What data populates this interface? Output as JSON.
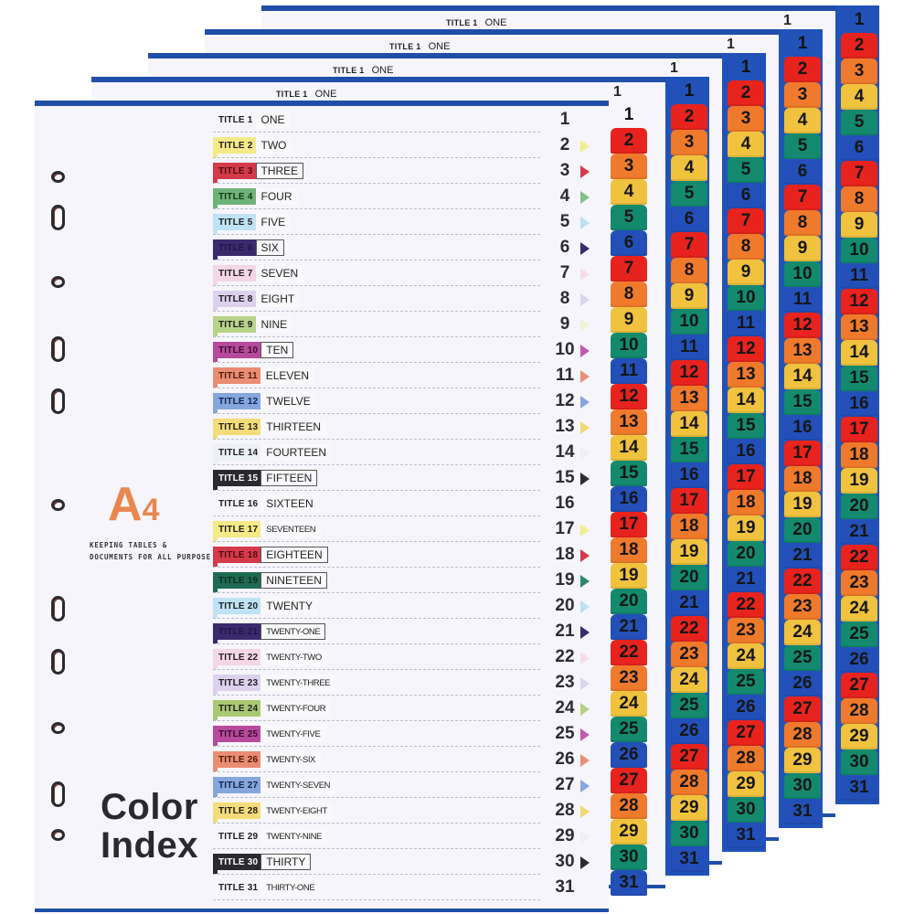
{
  "product": {
    "size_label": "A",
    "size_number": "4",
    "tagline_line1": "KEEPING TABLES &",
    "tagline_line2": "DOCUMENTS FOR ALL PURPOSE",
    "title_line1": "Color",
    "title_line2": "Index"
  },
  "colors": {
    "spine_blue": "#2152b8",
    "border_blue": "#1f4fa8",
    "paper": "#f6f5fb",
    "brand_orange": "#e8874f",
    "tab_cycle": [
      "#e8231e",
      "#f07a2c",
      "#f0c23e",
      "#138a6e",
      "#2350b8"
    ]
  },
  "back_sheets": [
    {
      "title_tag": "TITLE 1",
      "title_name": "ONE",
      "first_number": "1"
    },
    {
      "title_tag": "TITLE 1",
      "title_name": "ONE",
      "first_number": "1"
    },
    {
      "title_tag": "TITLE 1",
      "title_name": "ONE",
      "first_number": "1"
    },
    {
      "title_tag": "TITLE 1",
      "title_name": "ONE",
      "first_number": "1"
    }
  ],
  "tabs": [
    "1",
    "2",
    "3",
    "4",
    "5",
    "6",
    "7",
    "8",
    "9",
    "10",
    "11",
    "12",
    "13",
    "14",
    "15",
    "16",
    "17",
    "18",
    "19",
    "20",
    "21",
    "22",
    "23",
    "24",
    "25",
    "26",
    "27",
    "28",
    "29",
    "30",
    "31"
  ],
  "rows": [
    {
      "tag": "TITLE 1",
      "name": "ONE",
      "num": "1",
      "color": "transparent",
      "tagText": "#1d1d1d",
      "arrow": "transparent",
      "boxed": false
    },
    {
      "tag": "TITLE 2",
      "name": "TWO",
      "num": "2",
      "color": "#f5ea86",
      "tagText": "#1d1d1d",
      "arrow": "#f3ec90",
      "boxed": false
    },
    {
      "tag": "TITLE 3",
      "name": "THREE",
      "num": "3",
      "color": "#d6394a",
      "tagText": "#4a0d14",
      "arrow": "#d6394a",
      "boxed": true
    },
    {
      "tag": "TITLE 4",
      "name": "FOUR",
      "num": "4",
      "color": "#6fb279",
      "tagText": "#123818",
      "arrow": "#7ec289",
      "boxed": false
    },
    {
      "tag": "TITLE 5",
      "name": "FIVE",
      "num": "5",
      "color": "#bfe3f5",
      "tagText": "#1d1d1d",
      "arrow": "#b9e2f5",
      "boxed": false
    },
    {
      "tag": "TITLE 6",
      "name": "SIX",
      "num": "6",
      "color": "#3b2a6e",
      "tagText": "#241548",
      "arrow": "#3b2a6e",
      "boxed": true
    },
    {
      "tag": "TITLE 7",
      "name": "SEVEN",
      "num": "7",
      "color": "#f5d6e6",
      "tagText": "#1d1d1d",
      "arrow": "#f5dbe8",
      "boxed": false
    },
    {
      "tag": "TITLE 8",
      "name": "EIGHT",
      "num": "8",
      "color": "#ddd1ef",
      "tagText": "#1d1d1d",
      "arrow": "#dcd5ef",
      "boxed": false
    },
    {
      "tag": "TITLE 9",
      "name": "NINE",
      "num": "9",
      "color": "#b7d38a",
      "tagText": "#1d1d1d",
      "arrow": "#edf2d2",
      "boxed": false
    },
    {
      "tag": "TITLE 10",
      "name": "TEN",
      "num": "10",
      "color": "#b64a9c",
      "tagText": "#3a0c2e",
      "arrow": "#c25ab4",
      "boxed": true
    },
    {
      "tag": "TITLE 11",
      "name": "ELEVEN",
      "num": "11",
      "color": "#ea8c72",
      "tagText": "#4a1a0e",
      "arrow": "#ea9078",
      "boxed": false
    },
    {
      "tag": "TITLE 12",
      "name": "TWELVE",
      "num": "12",
      "color": "#86a7dd",
      "tagText": "#0e2452",
      "arrow": "#86a7dd",
      "boxed": false
    },
    {
      "tag": "TITLE 13",
      "name": "THIRTEEN",
      "num": "13",
      "color": "#f5dc7a",
      "tagText": "#1d1d1d",
      "arrow": "#f3d772",
      "boxed": false
    },
    {
      "tag": "TITLE 14",
      "name": "FOURTEEN",
      "num": "14",
      "color": "#eef0f7",
      "tagText": "#1d1d1d",
      "arrow": "#eef0f7",
      "boxed": false
    },
    {
      "tag": "TITLE 15",
      "name": "FIFTEEN",
      "num": "15",
      "color": "#2a2a30",
      "tagText": "#ffffff",
      "arrow": "#2a2a30",
      "boxed": true
    },
    {
      "tag": "TITLE 16",
      "name": "SIXTEEN",
      "num": "16",
      "color": "transparent",
      "tagText": "#1d1d1d",
      "arrow": "transparent",
      "boxed": false
    },
    {
      "tag": "TITLE 17",
      "name": "SEVENTEEN",
      "num": "17",
      "color": "#f5ea86",
      "tagText": "#1d1d1d",
      "arrow": "#f3ec90",
      "boxed": false
    },
    {
      "tag": "TITLE 18",
      "name": "EIGHTEEN",
      "num": "18",
      "color": "#d6394a",
      "tagText": "#4a0d14",
      "arrow": "#d6394a",
      "boxed": true
    },
    {
      "tag": "TITLE 19",
      "name": "NINETEEN",
      "num": "19",
      "color": "#1f6a52",
      "tagText": "#0c2c22",
      "arrow": "#2b8a6c",
      "boxed": true
    },
    {
      "tag": "TITLE 20",
      "name": "TWENTY",
      "num": "20",
      "color": "#bfe3f5",
      "tagText": "#1d1d1d",
      "arrow": "#b9e2f5",
      "boxed": false
    },
    {
      "tag": "TITLE 21",
      "name": "TWENTY-ONE",
      "num": "21",
      "color": "#3b2a6e",
      "tagText": "#241548",
      "arrow": "#3b2a6e",
      "boxed": true
    },
    {
      "tag": "TITLE 22",
      "name": "TWENTY-TWO",
      "num": "22",
      "color": "#f5d6e6",
      "tagText": "#1d1d1d",
      "arrow": "#f5dbe8",
      "boxed": false
    },
    {
      "tag": "TITLE 23",
      "name": "TWENTY-THREE",
      "num": "23",
      "color": "#ddd1ef",
      "tagText": "#1d1d1d",
      "arrow": "#dcd5ef",
      "boxed": false
    },
    {
      "tag": "TITLE 24",
      "name": "TWENTY-FOUR",
      "num": "24",
      "color": "#a9c873",
      "tagText": "#1d1d1d",
      "arrow": "#b5d088",
      "boxed": false
    },
    {
      "tag": "TITLE 25",
      "name": "TWENTY-FIVE",
      "num": "25",
      "color": "#b64a9c",
      "tagText": "#3a0c2e",
      "arrow": "#c25ab4",
      "boxed": false
    },
    {
      "tag": "TITLE 26",
      "name": "TWENTY-SIX",
      "num": "26",
      "color": "#ea8c72",
      "tagText": "#4a1a0e",
      "arrow": "#ea9078",
      "boxed": false
    },
    {
      "tag": "TITLE 27",
      "name": "TWENTY-SEVEN",
      "num": "27",
      "color": "#86a7dd",
      "tagText": "#0e2452",
      "arrow": "#86a7dd",
      "boxed": false
    },
    {
      "tag": "TITLE 28",
      "name": "TWENTY-EIGHT",
      "num": "28",
      "color": "#f5dc7a",
      "tagText": "#1d1d1d",
      "arrow": "#f3d772",
      "boxed": false
    },
    {
      "tag": "TITLE 29",
      "name": "TWENTY-NINE",
      "num": "29",
      "color": "transparent",
      "tagText": "#1d1d1d",
      "arrow": "#eef0f7",
      "boxed": false
    },
    {
      "tag": "TITLE 30",
      "name": "THIRTY",
      "num": "30",
      "color": "#2a2a30",
      "tagText": "#ffffff",
      "arrow": "#2a2a30",
      "boxed": true
    },
    {
      "tag": "TITLE 31",
      "name": "THIRTY-ONE",
      "num": "31",
      "color": "transparent",
      "tagText": "#1d1d1d",
      "arrow": "transparent",
      "boxed": false
    }
  ]
}
